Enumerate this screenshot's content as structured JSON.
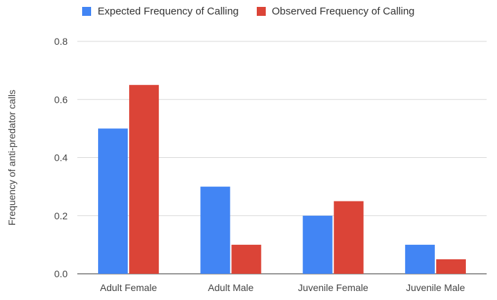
{
  "chart_data": {
    "type": "bar",
    "title": "",
    "xlabel": "",
    "ylabel": "Frequency of anti-predator calls",
    "categories": [
      "Adult Female",
      "Adult Male",
      "Juvenile Female",
      "Juvenile Male"
    ],
    "series": [
      {
        "name": "Expected Frequency of Calling",
        "color": "#4285f4",
        "values": [
          0.5,
          0.3,
          0.2,
          0.1
        ]
      },
      {
        "name": "Observed Frequency of Calling",
        "color": "#db4437",
        "values": [
          0.65,
          0.1,
          0.25,
          0.05
        ]
      }
    ],
    "ylim": [
      0,
      0.8
    ],
    "yticks": [
      "0.0",
      "0.2",
      "0.4",
      "0.6",
      "0.8"
    ],
    "grid": true,
    "legend_position": "top"
  }
}
